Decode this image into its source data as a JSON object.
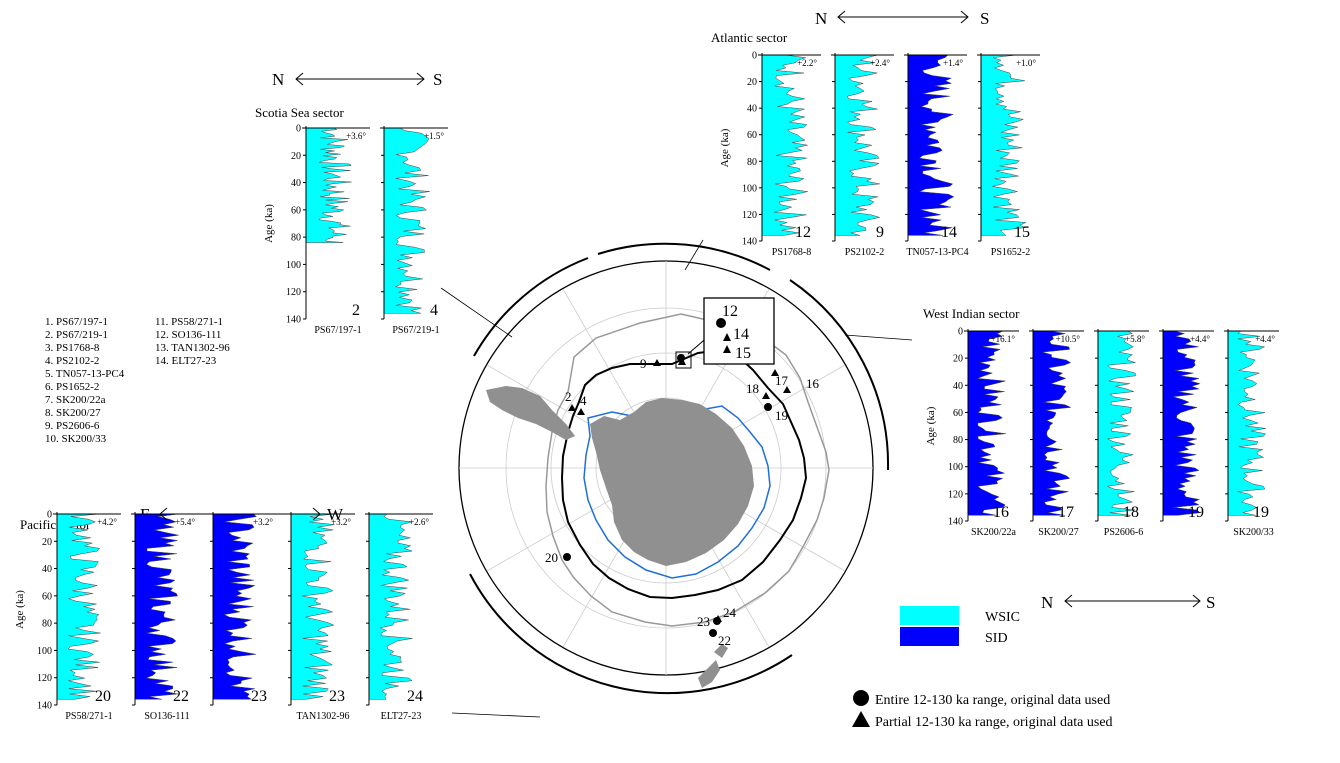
{
  "colors": {
    "wsic": "#00FFFF",
    "sid": "#0000FF",
    "land": "#909090",
    "black": "#000000",
    "grey": "#999999",
    "coast_blue": "#1E6FD9"
  },
  "yticks": [
    "0",
    "20",
    "40",
    "60",
    "80",
    "100",
    "120",
    "140"
  ],
  "age_label": "Age (ka)",
  "site_list": {
    "col1": [
      "1. PS67/197-1",
      "2. PS67/219-1",
      "3. PS1768-8",
      "4. PS2102-2",
      "5. TN057-13-PC4",
      "6. PS1652-2",
      "7. SK200/22a",
      "8. SK200/27",
      "9. PS2606-6",
      "10. SK200/33"
    ],
    "col2": [
      "11. PS58/271-1",
      "12. SO136-111",
      "13. TAN1302-96",
      "14. ELT27-23"
    ]
  },
  "legend": {
    "wsic": "WSIC",
    "sid": "SID",
    "circle": "Entire 12-130 ka range, original data used",
    "triangle": "Partial 12-130 ka range, original data used"
  },
  "scotia": {
    "title": "Scotia Sea sector",
    "dir_left": "N",
    "dir_right": "S",
    "cores": [
      {
        "name": "PS67/197-1",
        "site": "2",
        "delta": "+3.6°",
        "type": "wsic"
      },
      {
        "name": "PS67/219-1",
        "site": "4",
        "delta": "+1.5°",
        "type": "wsic"
      }
    ]
  },
  "atlantic": {
    "title": "Atlantic sector",
    "dir_left": "N",
    "dir_right": "S",
    "cores": [
      {
        "name": "PS1768-8",
        "site": "12",
        "delta": "+2.2°",
        "type": "wsic"
      },
      {
        "name": "PS2102-2",
        "site": "9",
        "delta": "+2.4°",
        "type": "wsic"
      },
      {
        "name": "TN057-13-PC4",
        "site": "14",
        "delta": "+1.4°",
        "type": "sid"
      },
      {
        "name": "PS1652-2",
        "site": "15",
        "delta": "+1.0°",
        "type": "wsic"
      }
    ]
  },
  "indian": {
    "title": "West Indian sector",
    "dir_left": "N",
    "dir_right": "S",
    "cores": [
      {
        "name": "SK200/22a",
        "site": "16",
        "delta": "+16.1°",
        "type": "sid"
      },
      {
        "name": "SK200/27",
        "site": "17",
        "delta": "+10.5°",
        "type": "sid"
      },
      {
        "name": "PS2606-6",
        "site": "18",
        "delta": "+5.8°",
        "type": "wsic"
      },
      {
        "name": "",
        "site": "19",
        "delta": "+4.4°",
        "type": "sid"
      },
      {
        "name": "SK200/33",
        "site": "19",
        "delta": "+4.4°",
        "type": "wsic"
      }
    ]
  },
  "pacific": {
    "title": "Pacific sector",
    "dir_left": "E",
    "dir_right": "W",
    "cores": [
      {
        "name": "PS58/271-1",
        "site": "20",
        "delta": "+4.2°",
        "type": "wsic"
      },
      {
        "name": "SO136-111",
        "site": "22",
        "delta": "+5.4°",
        "type": "sid"
      },
      {
        "name": "",
        "site": "23",
        "delta": "+3.2°",
        "type": "sid"
      },
      {
        "name": "TAN1302-96",
        "site": "23",
        "delta": "+3.2°",
        "type": "wsic"
      },
      {
        "name": "ELT27-23",
        "site": "24",
        "delta": "+2.6°",
        "type": "wsic"
      }
    ]
  },
  "map_labels": {
    "s9": "9",
    "s2": "2",
    "s4": "4",
    "s12": "12",
    "s14": "14",
    "s15": "15",
    "s17": "17",
    "s16": "16",
    "s18": "18",
    "s19": "19",
    "s20": "20",
    "s23": "23",
    "s24": "24",
    "s22": "22"
  }
}
